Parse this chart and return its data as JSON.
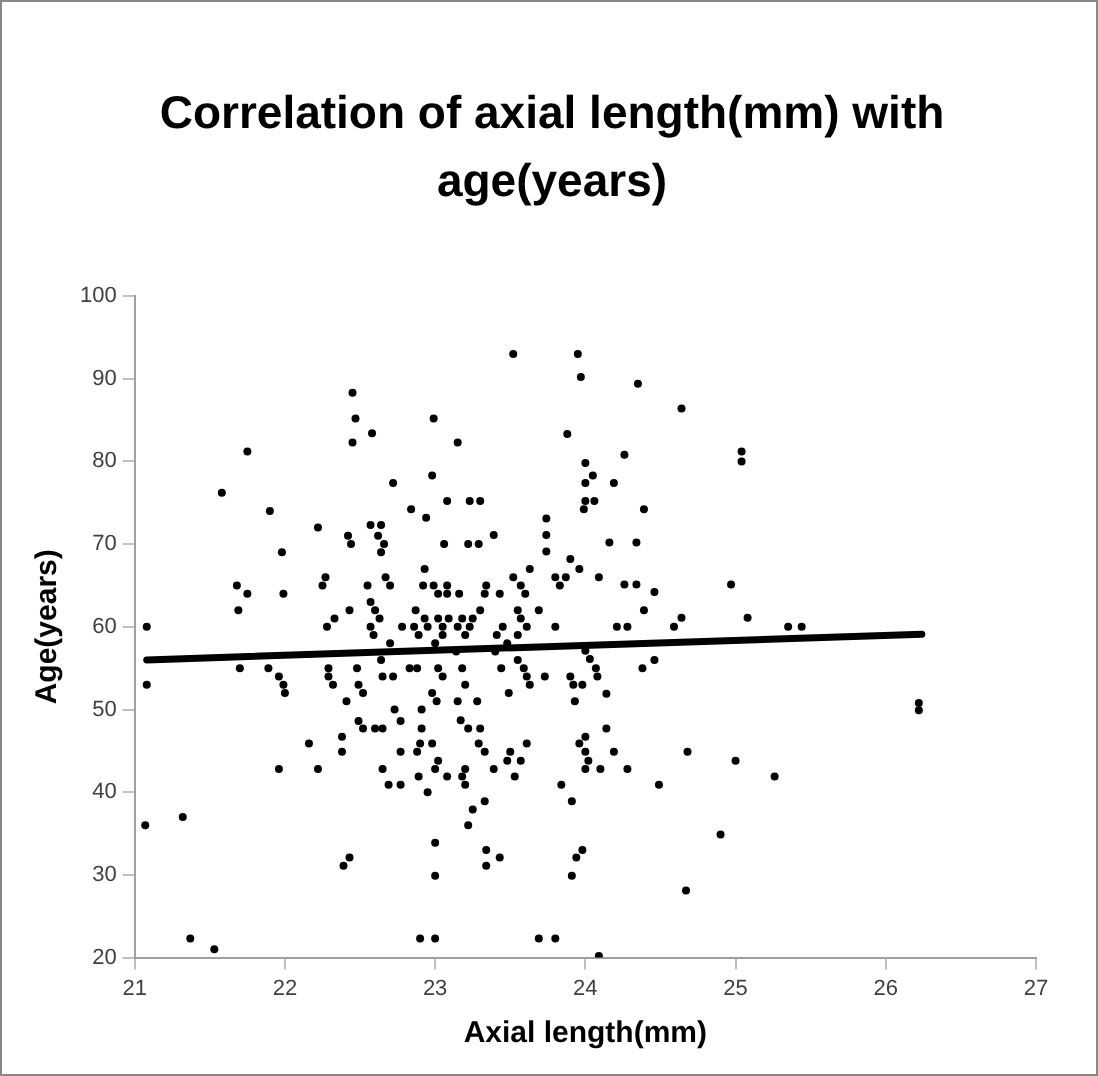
{
  "chart_data": {
    "type": "scatter",
    "title": "Correlation of axial length(mm) with age(years)",
    "xlabel": "Axial length(mm)",
    "ylabel": "Age(years)",
    "xlim": [
      21,
      27
    ],
    "xticks": [
      21,
      22,
      23,
      24,
      25,
      26,
      27
    ],
    "ylim": [
      20,
      100
    ],
    "yticks": [
      20,
      30,
      40,
      50,
      60,
      70,
      80,
      90,
      100
    ],
    "grid": false,
    "legend": false,
    "marker": "circle",
    "series": [
      {
        "color": "#000000",
        "x": [
          21.08,
          21.08,
          21.58,
          21.75,
          21.68,
          21.69,
          21.75,
          21.9,
          21.98,
          21.99,
          21.7,
          21.89,
          21.96,
          21.99,
          22.0,
          22.22,
          22.25,
          22.27,
          22.28,
          22.33,
          22.29,
          22.29,
          22.32,
          22.42,
          22.44,
          22.43,
          22.45,
          22.47,
          22.45,
          22.58,
          22.57,
          22.64,
          22.62,
          22.66,
          22.64,
          22.55,
          22.57,
          22.6,
          22.63,
          22.57,
          22.59,
          22.67,
          22.7,
          22.7,
          22.72,
          22.84,
          22.78,
          22.48,
          22.49,
          22.52,
          22.41,
          22.64,
          22.65,
          22.72,
          22.73,
          22.99,
          22.98,
          22.94,
          23.15,
          23.08,
          23.06,
          23.22,
          23.29,
          23.23,
          23.3,
          23.39,
          22.93,
          22.92,
          22.99,
          23.08,
          23.02,
          23.08,
          23.16,
          22.87,
          22.93,
          23.02,
          23.09,
          23.18,
          23.25,
          23.3,
          23.33,
          22.86,
          22.95,
          23.05,
          23.15,
          23.23,
          22.89,
          23.05,
          23.2,
          23.45,
          23.41,
          23.34,
          23.43,
          23.52,
          23.57,
          23.6,
          23.63,
          23.69,
          23.74,
          23.74,
          23.74,
          23.8,
          23.83,
          23.55,
          23.57,
          23.61,
          23.55,
          23.48,
          23.14,
          23.4,
          23.55,
          23.44,
          23.59,
          23.61,
          23.63,
          23.73,
          23.0,
          22.83,
          22.88,
          23.02,
          23.05,
          23.18,
          23.2,
          22.98,
          23.01,
          23.49,
          23.15,
          23.28,
          22.91,
          21.07,
          21.32,
          21.37,
          21.53,
          21.96,
          22.16,
          22.22,
          22.38,
          22.38,
          22.39,
          22.43,
          22.49,
          22.52,
          22.6,
          22.65,
          22.65,
          22.69,
          22.77,
          22.77,
          22.77,
          22.88,
          22.9,
          22.89,
          22.91,
          22.98,
          23.0,
          23.02,
          22.95,
          23.08,
          23.0,
          23.0,
          22.9,
          23.0,
          23.18,
          23.2,
          23.2,
          23.22,
          23.25,
          23.33,
          23.34,
          23.34,
          23.43,
          23.22,
          23.3,
          23.29,
          23.33,
          23.39,
          23.48,
          23.5,
          23.53,
          23.57,
          23.61,
          23.17,
          23.69,
          23.8,
          23.96,
          24.0,
          24.0,
          24.02,
          24.0,
          24.1,
          24.14,
          24.19,
          24.28,
          23.84,
          23.91,
          23.98,
          23.94,
          23.91,
          24.68,
          24.49,
          25.0,
          25.26,
          24.9,
          24.67,
          24.09,
          26.22,
          26.22,
          23.52,
          23.95,
          23.97,
          24.35,
          24.64,
          23.88,
          25.04,
          25.04,
          24.0,
          24.26,
          24.0,
          24.05,
          24.19,
          24.0,
          24.06,
          23.99,
          24.39,
          23.9,
          24.16,
          24.34,
          23.96,
          23.87,
          24.09,
          24.26,
          24.34,
          24.46,
          24.39,
          24.97,
          23.8,
          24.64,
          24.59,
          25.08,
          24.21,
          24.28,
          25.35,
          25.44,
          24.0,
          24.03,
          24.07,
          24.08,
          23.9,
          23.92,
          23.98,
          23.93,
          24.14,
          24.38,
          24.46
        ],
        "values": [
          60,
          53,
          76.2,
          81.2,
          65,
          62,
          64,
          74,
          69,
          64,
          55,
          55,
          54,
          53,
          52,
          72,
          65,
          66,
          60,
          61,
          55,
          54,
          53,
          71,
          70,
          62,
          88.3,
          85.2,
          82.3,
          83.4,
          72.3,
          72.3,
          71,
          70,
          69,
          65,
          63,
          62,
          61,
          60,
          59,
          66,
          65,
          58,
          77.4,
          74.2,
          60,
          55,
          53,
          52,
          51,
          56,
          54,
          54,
          50,
          85.2,
          78.3,
          73.2,
          82.3,
          75.2,
          70,
          70,
          70,
          75.2,
          75.2,
          71.1,
          67,
          65,
          65,
          65,
          64,
          64,
          64,
          62,
          61,
          61,
          61,
          61,
          61,
          62,
          64,
          60,
          60,
          60,
          60,
          60,
          59,
          59,
          59,
          60,
          59,
          65,
          64,
          66,
          65,
          64,
          67,
          62,
          73.1,
          71.1,
          69.1,
          66,
          65,
          62,
          61,
          60,
          59,
          58,
          57,
          57,
          56,
          55,
          55,
          54,
          53,
          54,
          58,
          55,
          55,
          55,
          54,
          55,
          53,
          52,
          51,
          52,
          51,
          51,
          50,
          36,
          37,
          22.3,
          21,
          42.8,
          45.9,
          42.8,
          46.7,
          44.9,
          31.1,
          32.1,
          48.6,
          47.7,
          47.7,
          47.7,
          42.8,
          40.9,
          40.9,
          44.9,
          48.6,
          44.9,
          45.9,
          41.9,
          47.7,
          45.9,
          42.8,
          43.8,
          40,
          41.9,
          33.9,
          29.9,
          22.3,
          22.3,
          41.9,
          40.9,
          42.8,
          36,
          37.9,
          38.9,
          33,
          31.1,
          32.1,
          47.7,
          47.7,
          45.9,
          44.9,
          42.8,
          43.8,
          44.9,
          41.9,
          43.8,
          45.9,
          48.7,
          22.3,
          22.3,
          45.9,
          46.7,
          44.9,
          43.8,
          42.8,
          42.8,
          47.7,
          44.9,
          42.8,
          40.9,
          38.9,
          33,
          32.1,
          29.9,
          44.9,
          40.9,
          43.8,
          41.9,
          34.9,
          28.1,
          20.2,
          50.8,
          49.9,
          93,
          93,
          90.2,
          89.4,
          86.4,
          83.3,
          81.2,
          80,
          79.8,
          80.8,
          77.4,
          78.3,
          77.4,
          75.2,
          75.2,
          74.2,
          74.2,
          68.2,
          70.2,
          70.2,
          67,
          66,
          66,
          65.1,
          65.1,
          64.2,
          62,
          65.1,
          60,
          61.1,
          60,
          61.1,
          60,
          60,
          60,
          60,
          57.1,
          56.1,
          55,
          54,
          54,
          53,
          53,
          51,
          51.9,
          55,
          56
        ]
      },
      {
        "type": "line",
        "color": "#000000",
        "marker": "none",
        "x": [
          21.08,
          26.24
        ],
        "values": [
          56,
          59.1
        ]
      }
    ]
  }
}
